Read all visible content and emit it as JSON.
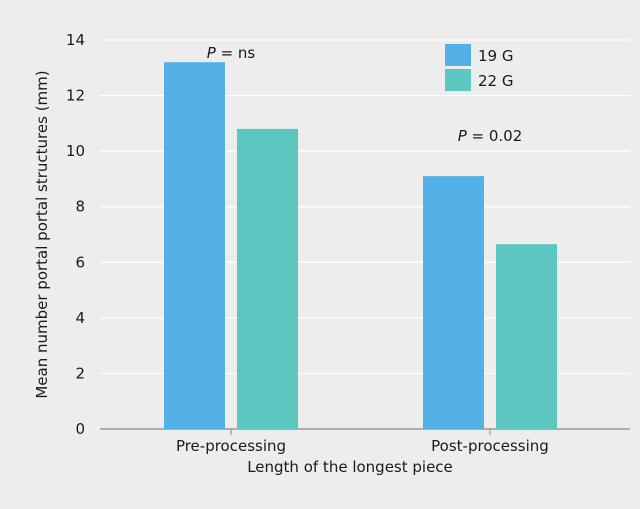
{
  "chart_data": {
    "type": "bar",
    "title": "",
    "xlabel": "Length of the longest piece",
    "ylabel": "Mean number portal portal structures (mm)",
    "categories": [
      "Pre-processing",
      "Post-processing"
    ],
    "series": [
      {
        "name": "19 G",
        "values": [
          13.2,
          9.1
        ],
        "color": "#52b0e6"
      },
      {
        "name": "22 G",
        "values": [
          10.8,
          6.65
        ],
        "color": "#5cc6c0"
      }
    ],
    "ylim": [
      0,
      14
    ],
    "yticks": [
      0,
      2,
      4,
      6,
      8,
      10,
      12,
      14
    ],
    "grid": true,
    "legend_position": "top-right",
    "annotations": [
      {
        "italic": "P",
        "rest": " = ns",
        "category": "Pre-processing"
      },
      {
        "italic": "P",
        "rest": " = 0.02",
        "category": "Post-processing"
      }
    ]
  }
}
